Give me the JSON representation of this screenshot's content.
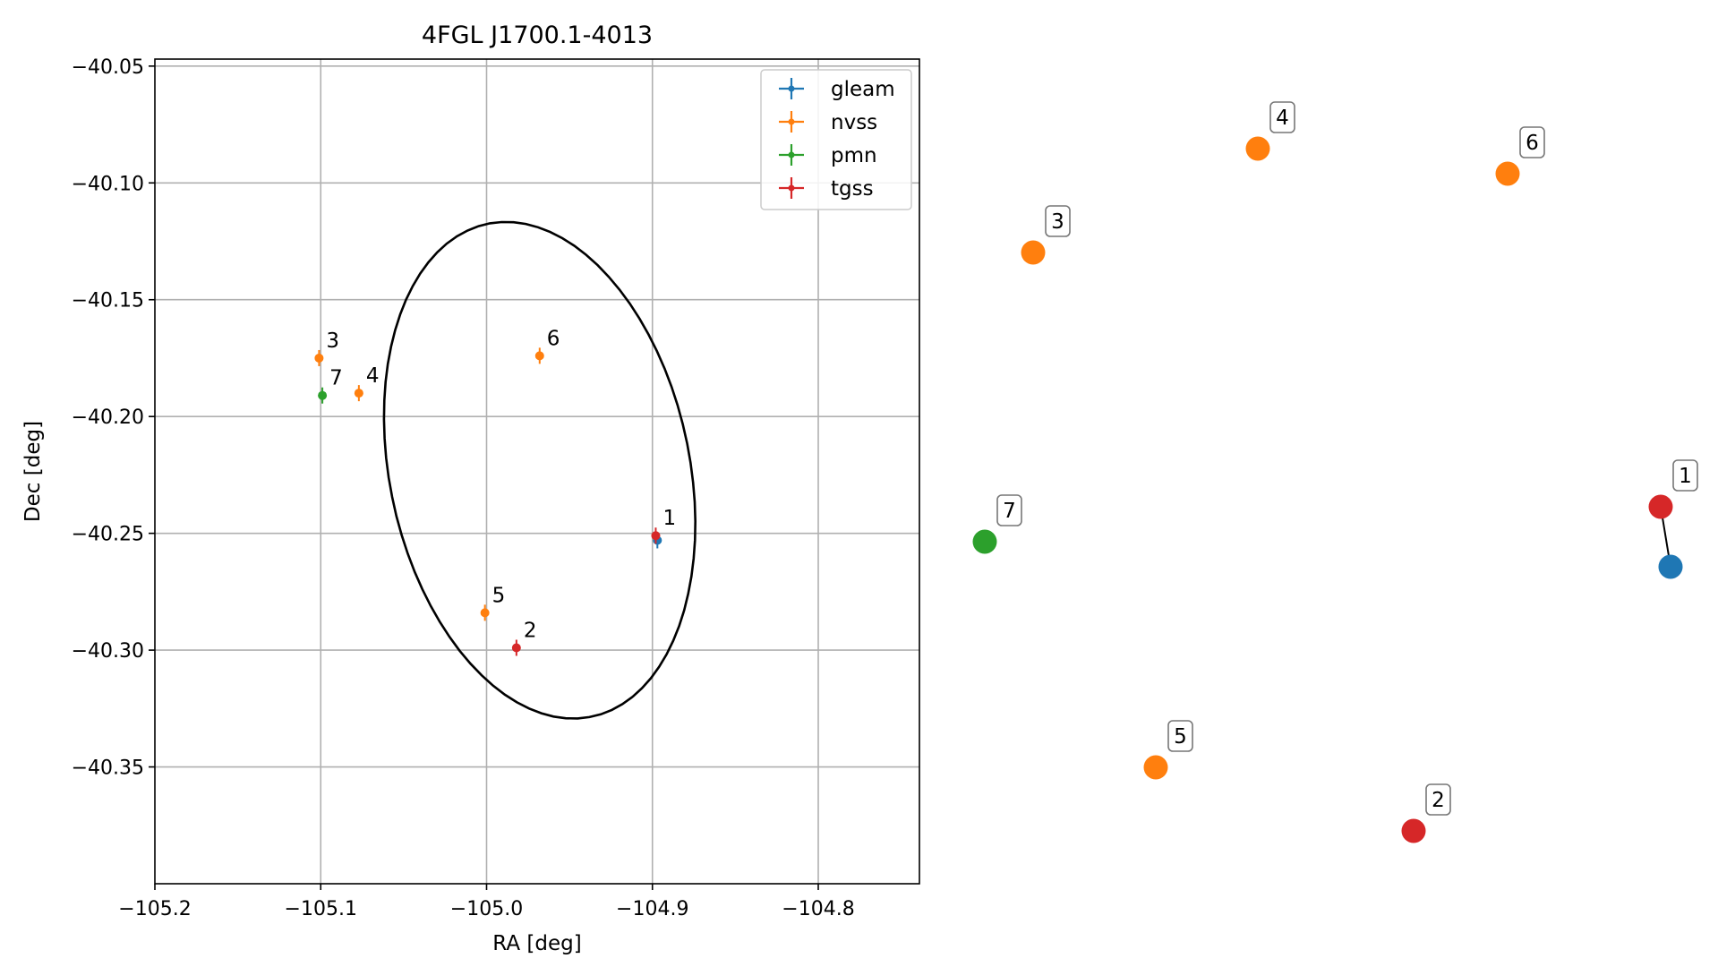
{
  "chart_data": [
    {
      "type": "scatter",
      "title": "4FGL J1700.1-4013",
      "xlabel": "RA [deg]",
      "ylabel": "Dec [deg]",
      "xlim": [
        -105.2,
        -104.739
      ],
      "ylim": [
        -40.4,
        -40.047
      ],
      "x_ticks": [
        -105.2,
        -105.1,
        -105.0,
        -104.9,
        -104.8
      ],
      "x_tick_labels": [
        "−105.2",
        "−105.1",
        "−105.0",
        "−104.9",
        "−104.8"
      ],
      "y_ticks": [
        -40.05,
        -40.1,
        -40.15,
        -40.2,
        -40.25,
        -40.3,
        -40.35
      ],
      "y_tick_labels": [
        "−40.05",
        "−40.10",
        "−40.15",
        "−40.20",
        "−40.25",
        "−40.30",
        "−40.35"
      ],
      "grid": true,
      "legend_position": "top-right",
      "series": [
        {
          "name": "gleam",
          "color": "#1f77b4",
          "points": [
            {
              "ra": -104.897,
              "dec": -40.253
            }
          ]
        },
        {
          "name": "nvss",
          "color": "#ff7f0e",
          "points": [
            {
              "ra": -105.001,
              "dec": -40.284
            },
            {
              "ra": -105.101,
              "dec": -40.175
            },
            {
              "ra": -105.077,
              "dec": -40.19
            },
            {
              "ra": -104.968,
              "dec": -40.174
            }
          ]
        },
        {
          "name": "pmn",
          "color": "#2ca02c",
          "points": [
            {
              "ra": -105.099,
              "dec": -40.191
            }
          ]
        },
        {
          "name": "tgss",
          "color": "#d62728",
          "points": [
            {
              "ra": -104.898,
              "dec": -40.251
            },
            {
              "ra": -104.982,
              "dec": -40.299
            }
          ]
        }
      ],
      "point_labels": [
        {
          "text": "1",
          "ra": -104.898,
          "dec": -40.251
        },
        {
          "text": "2",
          "ra": -104.982,
          "dec": -40.299
        },
        {
          "text": "3",
          "ra": -105.101,
          "dec": -40.175
        },
        {
          "text": "4",
          "ra": -105.077,
          "dec": -40.19
        },
        {
          "text": "5",
          "ra": -105.001,
          "dec": -40.284
        },
        {
          "text": "6",
          "ra": -104.968,
          "dec": -40.174
        },
        {
          "text": "7",
          "ra": -105.099,
          "dec": -40.191
        }
      ],
      "ellipse": {
        "center_ra": -104.968,
        "center_dec": -40.223,
        "semi_a": 0.112,
        "semi_b": 0.087,
        "angle_deg": -60,
        "color": "#000000"
      }
    },
    {
      "type": "graph",
      "nodes": [
        {
          "label": "1",
          "color": "#d62728"
        },
        {
          "label": "",
          "color": "#1f77b4"
        },
        {
          "label": "2",
          "color": "#d62728"
        },
        {
          "label": "3",
          "color": "#ff7f0e"
        },
        {
          "label": "4",
          "color": "#ff7f0e"
        },
        {
          "label": "5",
          "color": "#ff7f0e"
        },
        {
          "label": "6",
          "color": "#ff7f0e"
        },
        {
          "label": "7",
          "color": "#2ca02c"
        }
      ],
      "edges": [
        [
          0,
          1
        ]
      ]
    }
  ]
}
